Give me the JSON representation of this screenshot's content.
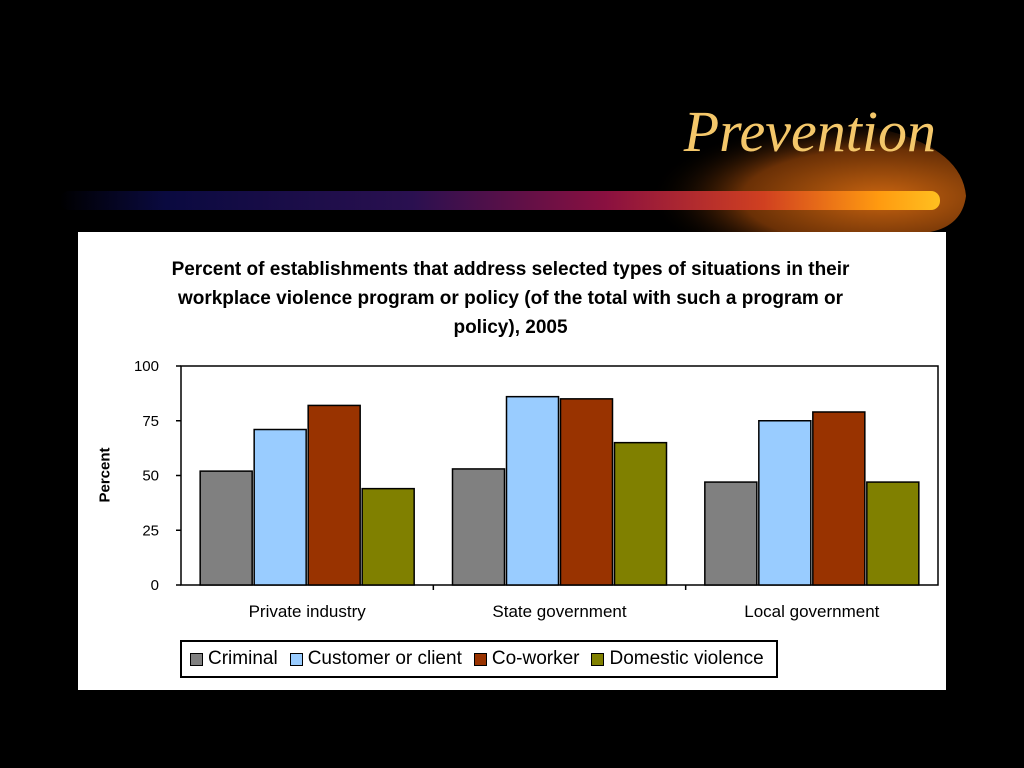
{
  "slide": {
    "title": "Prevention"
  },
  "chart_data": {
    "type": "bar",
    "title": "Percent of establishments that address selected types of situations in their workplace violence program or policy (of the total with such a program or policy), 2005",
    "xlabel": "",
    "ylabel": "Percent",
    "ylim": [
      0,
      100
    ],
    "yticks": [
      0,
      25,
      50,
      75,
      100
    ],
    "categories": [
      "Private industry",
      "State government",
      "Local government"
    ],
    "series": [
      {
        "name": "Criminal",
        "color": "#808080",
        "values": [
          52,
          53,
          47
        ]
      },
      {
        "name": "Customer or client",
        "color": "#99ccff",
        "values": [
          71,
          86,
          75
        ]
      },
      {
        "name": "Co-worker",
        "color": "#993300",
        "values": [
          82,
          85,
          79
        ]
      },
      {
        "name": "Domestic violence",
        "color": "#808000",
        "values": [
          44,
          65,
          47
        ]
      }
    ],
    "grid": false,
    "legend_position": "bottom"
  }
}
